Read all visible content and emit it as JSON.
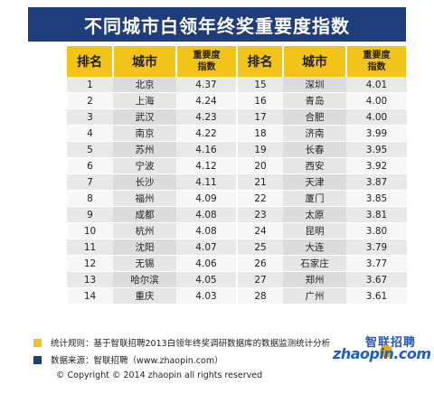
{
  "title": "不同城市白领年终奖重要度指数",
  "headers": {
    "rank": "排名",
    "city": "城市",
    "score_line1": "重要度",
    "score_line2": "指数"
  },
  "left_rows": [
    {
      "rank": "1",
      "city": "北京",
      "score": "4.37"
    },
    {
      "rank": "2",
      "city": "上海",
      "score": "4.24"
    },
    {
      "rank": "3",
      "city": "武汉",
      "score": "4.23"
    },
    {
      "rank": "4",
      "city": "南京",
      "score": "4.22"
    },
    {
      "rank": "5",
      "city": "苏州",
      "score": "4.16"
    },
    {
      "rank": "6",
      "city": "宁波",
      "score": "4.12"
    },
    {
      "rank": "7",
      "city": "长沙",
      "score": "4.11"
    },
    {
      "rank": "8",
      "city": "福州",
      "score": "4.09"
    },
    {
      "rank": "9",
      "city": "成都",
      "score": "4.08"
    },
    {
      "rank": "10",
      "city": "杭州",
      "score": "4.08"
    },
    {
      "rank": "11",
      "city": "沈阳",
      "score": "4.07"
    },
    {
      "rank": "12",
      "city": "无锡",
      "score": "4.06"
    },
    {
      "rank": "13",
      "city": "哈尔滨",
      "score": "4.05"
    },
    {
      "rank": "14",
      "city": "重庆",
      "score": "4.03"
    }
  ],
  "right_rows": [
    {
      "rank": "15",
      "city": "深圳",
      "score": "4.01"
    },
    {
      "rank": "16",
      "city": "青岛",
      "score": "4.00"
    },
    {
      "rank": "17",
      "city": "合肥",
      "score": "4.00"
    },
    {
      "rank": "18",
      "city": "济南",
      "score": "3.99"
    },
    {
      "rank": "19",
      "city": "长春",
      "score": "3.95"
    },
    {
      "rank": "20",
      "city": "西安",
      "score": "3.92"
    },
    {
      "rank": "21",
      "city": "天津",
      "score": "3.87"
    },
    {
      "rank": "22",
      "city": "厦门",
      "score": "3.85"
    },
    {
      "rank": "23",
      "city": "太原",
      "score": "3.81"
    },
    {
      "rank": "24",
      "city": "昆明",
      "score": "3.80"
    },
    {
      "rank": "25",
      "city": "大连",
      "score": "3.79"
    },
    {
      "rank": "26",
      "city": "石家庄",
      "score": "3.77"
    },
    {
      "rank": "27",
      "city": "郑州",
      "score": "3.67"
    },
    {
      "rank": "28",
      "city": "广州",
      "score": "3.61"
    }
  ],
  "footer": {
    "method": "统计规则：基于智联招聘2013白领年终奖调研数据库的数据监测统计分析",
    "source": "数据来源：智联招聘（www.zhaopin.com）",
    "copyright": "© Copyright © 2014 zhaopin all rights  reserved"
  },
  "logo": {
    "cn": "智联招聘",
    "en": "zhaopin.com"
  },
  "colors": {
    "title_bg": "#1f3d7a",
    "header_bg": "#f2c318",
    "method_square": "#f2c318",
    "source_square": "#1f3d7a"
  }
}
